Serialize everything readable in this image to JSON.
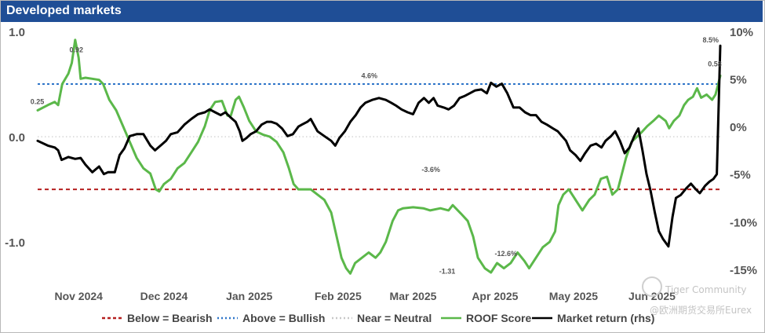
{
  "title": "Developed markets",
  "watermark": {
    "line1": "Tiger Community",
    "line2": "@欧洲期货交易所Eurex"
  },
  "chart_data": {
    "type": "line",
    "title": "Developed markets",
    "left_axis": {
      "range": [
        -1.35,
        1.0
      ],
      "ticks": [
        1.0,
        0.0,
        -1.0
      ],
      "tick_labels": [
        "1.0",
        "0.0",
        "-1.0"
      ]
    },
    "right_axis": {
      "range": [
        -16.0,
        10.0
      ],
      "ticks": [
        10,
        5,
        0,
        -5,
        -10,
        -15
      ],
      "tick_labels": [
        "10%",
        "5%",
        "0%",
        "-5%",
        "-10%",
        "-15%"
      ]
    },
    "x_range": [
      0,
      100
    ],
    "x_ticks": [
      {
        "label": "Nov 2024",
        "x": 6
      },
      {
        "label": "Dec 2024",
        "x": 18.5
      },
      {
        "label": "Jan 2025",
        "x": 31
      },
      {
        "label": "Feb 2025",
        "x": 44
      },
      {
        "label": "Mar 2025",
        "x": 55
      },
      {
        "label": "Apr 2025",
        "x": 67
      },
      {
        "label": "May 2025",
        "x": 78.5
      },
      {
        "label": "Jun 2025",
        "x": 90
      }
    ],
    "thresholds": [
      {
        "name": "Above = Bullish",
        "value": 0.5,
        "color": "#2e75c9",
        "dash": "dotted"
      },
      {
        "name": "Near = Neutral",
        "value": 0.0,
        "color": "#c8c8c8",
        "dash": "dotted"
      },
      {
        "name": "Below = Bearish",
        "value": -0.5,
        "color": "#b51f1f",
        "dash": "dashed"
      }
    ],
    "series": [
      {
        "name": "ROOF Score",
        "axis": "left",
        "color": "#5bb84a",
        "points": [
          [
            0,
            0.25
          ],
          [
            1.5,
            0.3
          ],
          [
            2.5,
            0.33
          ],
          [
            3,
            0.3
          ],
          [
            3.6,
            0.5
          ],
          [
            4.5,
            0.6
          ],
          [
            5,
            0.7
          ],
          [
            5.5,
            0.92
          ],
          [
            6,
            0.75
          ],
          [
            6.3,
            0.55
          ],
          [
            7,
            0.56
          ],
          [
            8,
            0.55
          ],
          [
            9,
            0.54
          ],
          [
            9.6,
            0.5
          ],
          [
            10.5,
            0.35
          ],
          [
            11.5,
            0.25
          ],
          [
            12.5,
            0.1
          ],
          [
            13.5,
            -0.05
          ],
          [
            14.5,
            -0.2
          ],
          [
            15.5,
            -0.3
          ],
          [
            16.5,
            -0.35
          ],
          [
            17.3,
            -0.5
          ],
          [
            17.8,
            -0.52
          ],
          [
            18.5,
            -0.45
          ],
          [
            19.5,
            -0.4
          ],
          [
            20.5,
            -0.3
          ],
          [
            21.5,
            -0.25
          ],
          [
            22.5,
            -0.15
          ],
          [
            23.5,
            -0.05
          ],
          [
            24.5,
            0.1
          ],
          [
            25.2,
            0.25
          ],
          [
            26,
            0.33
          ],
          [
            27,
            0.34
          ],
          [
            27.8,
            0.2
          ],
          [
            28.3,
            0.2
          ],
          [
            29,
            0.35
          ],
          [
            29.5,
            0.38
          ],
          [
            30.2,
            0.28
          ],
          [
            31,
            0.15
          ],
          [
            32,
            0.05
          ],
          [
            33,
            0.02
          ],
          [
            34,
            0.0
          ],
          [
            35,
            -0.05
          ],
          [
            36,
            -0.15
          ],
          [
            36.8,
            -0.3
          ],
          [
            37.5,
            -0.45
          ],
          [
            38.2,
            -0.5
          ],
          [
            40,
            -0.5
          ],
          [
            41,
            -0.55
          ],
          [
            42,
            -0.6
          ],
          [
            43,
            -0.72
          ],
          [
            43.8,
            -0.95
          ],
          [
            44.5,
            -1.15
          ],
          [
            45.2,
            -1.25
          ],
          [
            45.8,
            -1.3
          ],
          [
            46.5,
            -1.2
          ],
          [
            47.5,
            -1.15
          ],
          [
            48.5,
            -1.1
          ],
          [
            49.5,
            -1.15
          ],
          [
            50.2,
            -1.1
          ],
          [
            51,
            -1.0
          ],
          [
            52,
            -0.8
          ],
          [
            52.8,
            -0.7
          ],
          [
            53.5,
            -0.68
          ],
          [
            55,
            -0.67
          ],
          [
            56.5,
            -0.68
          ],
          [
            57.5,
            -0.7
          ],
          [
            59,
            -0.68
          ],
          [
            60.2,
            -0.7
          ],
          [
            60.8,
            -0.65
          ],
          [
            62,
            -0.73
          ],
          [
            63,
            -0.8
          ],
          [
            63.8,
            -0.95
          ],
          [
            64.5,
            -1.15
          ],
          [
            65.5,
            -1.25
          ],
          [
            66.4,
            -1.29
          ],
          [
            67.3,
            -1.2
          ],
          [
            68.3,
            -1.25
          ],
          [
            69.3,
            -1.2
          ],
          [
            70.3,
            -1.1
          ],
          [
            71.3,
            -1.18
          ],
          [
            72,
            -1.25
          ],
          [
            73,
            -1.15
          ],
          [
            74,
            -1.05
          ],
          [
            75,
            -1.0
          ],
          [
            75.8,
            -0.9
          ],
          [
            76.3,
            -0.65
          ],
          [
            77,
            -0.55
          ],
          [
            77.8,
            -0.5
          ],
          [
            78.8,
            -0.6
          ],
          [
            79.8,
            -0.7
          ],
          [
            80.8,
            -0.6
          ],
          [
            81.6,
            -0.55
          ],
          [
            82.5,
            -0.4
          ],
          [
            83.4,
            -0.38
          ],
          [
            84.2,
            -0.55
          ],
          [
            85,
            -0.5
          ],
          [
            85.6,
            -0.35
          ],
          [
            86.2,
            -0.2
          ],
          [
            87,
            -0.05
          ],
          [
            87.8,
            0.0
          ],
          [
            88.6,
            0.05
          ],
          [
            89.3,
            0.1
          ],
          [
            90.2,
            0.15
          ],
          [
            91,
            0.2
          ],
          [
            92,
            0.15
          ],
          [
            92.5,
            0.08
          ],
          [
            93.2,
            0.15
          ],
          [
            94,
            0.2
          ],
          [
            94.7,
            0.3
          ],
          [
            95.3,
            0.35
          ],
          [
            96,
            0.38
          ],
          [
            96.6,
            0.46
          ],
          [
            97.2,
            0.37
          ],
          [
            98,
            0.4
          ],
          [
            98.8,
            0.35
          ],
          [
            99.3,
            0.4
          ],
          [
            99.7,
            0.5
          ],
          [
            100,
            0.58
          ]
        ]
      },
      {
        "name": "Market return (rhs)",
        "axis": "right",
        "color": "#000000",
        "points": [
          [
            0,
            -1.5
          ],
          [
            1.5,
            -2.0
          ],
          [
            2.5,
            -2.2
          ],
          [
            3,
            -2.5
          ],
          [
            3.5,
            -3.5
          ],
          [
            4.5,
            -3.2
          ],
          [
            5.5,
            -3.4
          ],
          [
            6.3,
            -3.3
          ],
          [
            7,
            -4.0
          ],
          [
            8,
            -4.8
          ],
          [
            9,
            -4.2
          ],
          [
            9.7,
            -5.0
          ],
          [
            10.3,
            -4.8
          ],
          [
            11.3,
            -4.8
          ],
          [
            12,
            -3.0
          ],
          [
            12.7,
            -2.3
          ],
          [
            13.5,
            -1.0
          ],
          [
            14.5,
            -0.8
          ],
          [
            15.5,
            -0.8
          ],
          [
            16.5,
            -2.0
          ],
          [
            17.2,
            -2.5
          ],
          [
            18,
            -2.0
          ],
          [
            18.8,
            -1.5
          ],
          [
            19.5,
            -0.8
          ],
          [
            20.5,
            -0.6
          ],
          [
            21.5,
            0.2
          ],
          [
            22.5,
            0.8
          ],
          [
            23.5,
            1.3
          ],
          [
            24.5,
            1.5
          ],
          [
            25.2,
            1.8
          ],
          [
            26,
            1.5
          ],
          [
            26.8,
            1.2
          ],
          [
            27.5,
            1.5
          ],
          [
            28.2,
            1.0
          ],
          [
            29,
            0.5
          ],
          [
            29.6,
            -0.5
          ],
          [
            30,
            -1.5
          ],
          [
            30.6,
            -1.2
          ],
          [
            31.2,
            -0.8
          ],
          [
            32,
            -0.5
          ],
          [
            32.8,
            0.2
          ],
          [
            33.6,
            0.5
          ],
          [
            34.2,
            0.5
          ],
          [
            35,
            0.3
          ],
          [
            35.8,
            -0.2
          ],
          [
            36.6,
            -1.0
          ],
          [
            37.4,
            -0.8
          ],
          [
            38.2,
            0.0
          ],
          [
            38.7,
            0.2
          ],
          [
            39.5,
            0.5
          ],
          [
            40,
            0.8
          ],
          [
            41,
            -0.5
          ],
          [
            42,
            -1.0
          ],
          [
            43,
            -1.5
          ],
          [
            43.6,
            -2.0
          ],
          [
            44.2,
            -1.2
          ],
          [
            45,
            -0.5
          ],
          [
            45.8,
            0.5
          ],
          [
            46.6,
            1.2
          ],
          [
            47.3,
            2.0
          ],
          [
            48,
            2.5
          ],
          [
            49,
            2.8
          ],
          [
            50,
            3.0
          ],
          [
            51,
            2.8
          ],
          [
            51.8,
            2.5
          ],
          [
            52.5,
            2.2
          ],
          [
            53.3,
            1.8
          ],
          [
            54.2,
            1.5
          ],
          [
            55,
            1.3
          ],
          [
            55.8,
            2.5
          ],
          [
            56.6,
            3.0
          ],
          [
            57.3,
            2.5
          ],
          [
            58,
            3.0
          ],
          [
            58.6,
            2.2
          ],
          [
            59.5,
            2.0
          ],
          [
            60.2,
            1.8
          ],
          [
            61,
            2.2
          ],
          [
            61.8,
            3.0
          ],
          [
            62.5,
            3.2
          ],
          [
            63.3,
            3.5
          ],
          [
            64.1,
            3.8
          ],
          [
            65,
            3.9
          ],
          [
            65.8,
            3.5
          ],
          [
            66.4,
            4.6
          ],
          [
            67.2,
            4.2
          ],
          [
            68,
            4.5
          ],
          [
            68.8,
            3.5
          ],
          [
            69.7,
            2.0
          ],
          [
            70.6,
            2.0
          ],
          [
            71.4,
            1.5
          ],
          [
            72.2,
            1.2
          ],
          [
            73,
            1.2
          ],
          [
            73.8,
            0.5
          ],
          [
            74.6,
            0.2
          ],
          [
            75.5,
            -0.2
          ],
          [
            76.2,
            -0.5
          ],
          [
            76.8,
            -1.0
          ],
          [
            77.4,
            -1.5
          ],
          [
            78,
            -2.5
          ],
          [
            78.8,
            -3.0
          ],
          [
            79.5,
            -3.6
          ],
          [
            80.2,
            -2.8
          ],
          [
            81,
            -2.0
          ],
          [
            81.8,
            -1.8
          ],
          [
            82.6,
            -2.2
          ],
          [
            83.2,
            -1.5
          ],
          [
            84,
            -1.0
          ],
          [
            84.6,
            -0.5
          ],
          [
            85.3,
            -1.5
          ],
          [
            86,
            -2.8
          ],
          [
            86.7,
            -2.2
          ],
          [
            87.4,
            -1.0
          ],
          [
            88,
            -0.2
          ],
          [
            88.6,
            -2.5
          ],
          [
            89.2,
            -5.0
          ],
          [
            89.8,
            -6.8
          ],
          [
            90.4,
            -9.0
          ],
          [
            91,
            -11.0
          ],
          [
            91.6,
            -11.8
          ],
          [
            92.4,
            -12.6
          ],
          [
            93,
            -9.5
          ],
          [
            93.5,
            -7.5
          ],
          [
            94.2,
            -7.2
          ],
          [
            95,
            -6.5
          ],
          [
            95.7,
            -6.0
          ],
          [
            96.3,
            -6.5
          ],
          [
            97,
            -7.0
          ],
          [
            97.8,
            -6.2
          ],
          [
            98.4,
            -5.8
          ],
          [
            99,
            -5.5
          ],
          [
            99.5,
            -5.0
          ],
          [
            100,
            8.5
          ]
        ]
      }
    ],
    "annotations": [
      {
        "text": "0.25",
        "series": "ROOF Score"
      },
      {
        "text": "0.92",
        "series": "ROOF Score"
      },
      {
        "text": "4.6%",
        "series": "Market return (rhs)"
      },
      {
        "text": "-3.6%",
        "series": "Market return (rhs)"
      },
      {
        "text": "-1.31",
        "series": "ROOF Score"
      },
      {
        "text": "-12.6%",
        "series": "Market return (rhs)"
      },
      {
        "text": "8.5%",
        "series": "Market return (rhs)"
      },
      {
        "text": "0.58",
        "series": "ROOF Score"
      }
    ],
    "legend": {
      "placement": "bottom",
      "items": [
        {
          "label": "Below = Bearish",
          "color": "#b51f1f",
          "style": "dashed"
        },
        {
          "label": "Above = Bullish",
          "color": "#2e75c9",
          "style": "dotted"
        },
        {
          "label": "Near = Neutral",
          "color": "#c8c8c8",
          "style": "dotted"
        },
        {
          "label": "ROOF Score",
          "color": "#5bb84a",
          "style": "solid"
        },
        {
          "label": "Market return (rhs)",
          "color": "#000000",
          "style": "solid"
        }
      ]
    }
  }
}
